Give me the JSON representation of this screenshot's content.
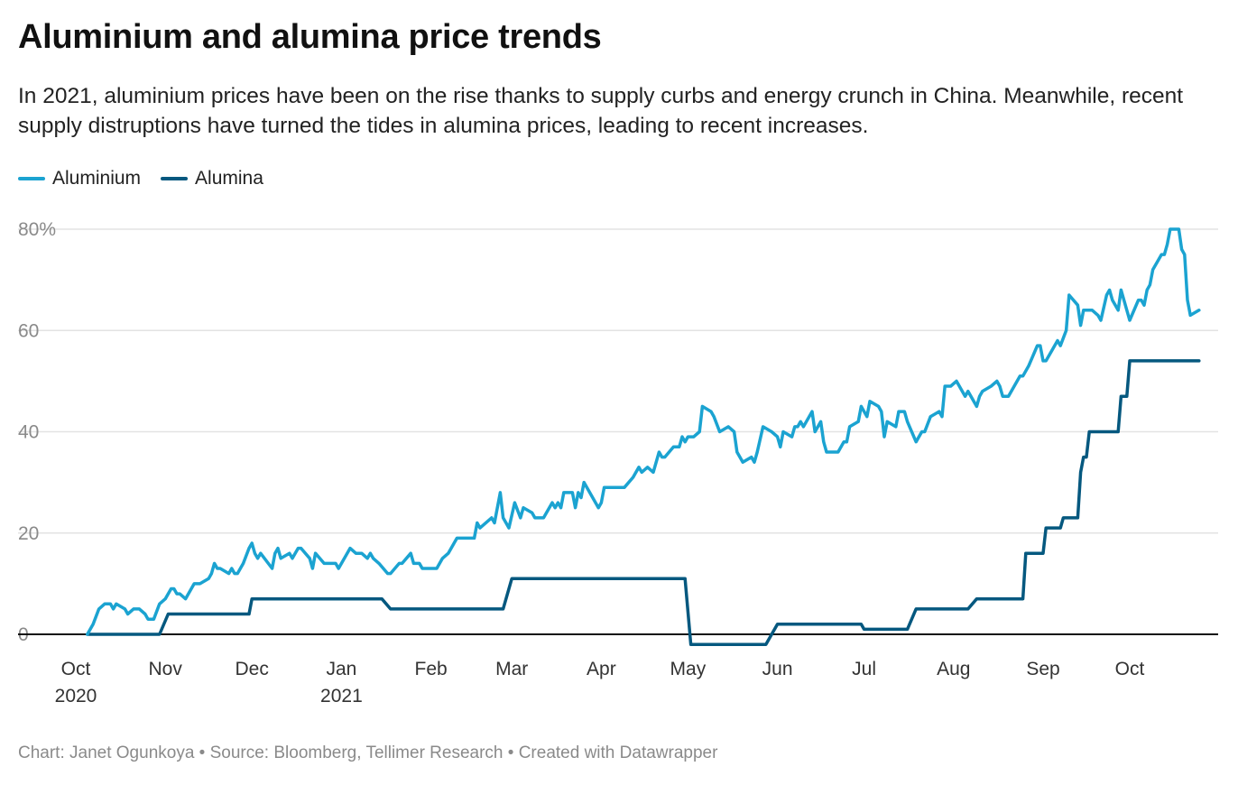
{
  "header": {
    "title": "Aluminium and alumina price trends",
    "subtitle": "In 2021, aluminium prices have been on the rise thanks to supply curbs and energy crunch in China. Meanwhile, recent supply distruptions have turned the tides in alumina prices, leading to recent increases."
  },
  "footer": "Chart: Janet Ogunkoya • Source: Bloomberg, Tellimer Research • Created with Datawrapper",
  "chart_data": {
    "type": "line",
    "title": "Aluminium and alumina price trends",
    "xlabel": "",
    "ylabel": "",
    "ylim": [
      -3,
      82
    ],
    "grid": true,
    "legend_position": "top-left",
    "y_ticks": [
      "0",
      "20",
      "40",
      "60",
      "80%"
    ],
    "y_tick_values": [
      0,
      20,
      40,
      60,
      80
    ],
    "x_ticks": [
      {
        "date": "2020-10-01",
        "label": "Oct",
        "year": "2020"
      },
      {
        "date": "2020-11-01",
        "label": "Nov"
      },
      {
        "date": "2020-12-01",
        "label": "Dec"
      },
      {
        "date": "2021-01-01",
        "label": "Jan",
        "year": "2021"
      },
      {
        "date": "2021-02-01",
        "label": "Feb"
      },
      {
        "date": "2021-03-01",
        "label": "Mar"
      },
      {
        "date": "2021-04-01",
        "label": "Apr"
      },
      {
        "date": "2021-05-01",
        "label": "May"
      },
      {
        "date": "2021-06-01",
        "label": "Jun"
      },
      {
        "date": "2021-07-01",
        "label": "Jul"
      },
      {
        "date": "2021-08-01",
        "label": "Aug"
      },
      {
        "date": "2021-09-01",
        "label": "Sep"
      },
      {
        "date": "2021-10-01",
        "label": "Oct"
      }
    ],
    "series": [
      {
        "name": "Aluminium",
        "color": "#1ba3d1",
        "points": [
          [
            "2020-10-05",
            0
          ],
          [
            "2020-10-07",
            2
          ],
          [
            "2020-10-09",
            5
          ],
          [
            "2020-10-11",
            6
          ],
          [
            "2020-10-13",
            6
          ],
          [
            "2020-10-14",
            5
          ],
          [
            "2020-10-15",
            6
          ],
          [
            "2020-10-18",
            5
          ],
          [
            "2020-10-19",
            4
          ],
          [
            "2020-10-21",
            5
          ],
          [
            "2020-10-23",
            5
          ],
          [
            "2020-10-25",
            4
          ],
          [
            "2020-10-26",
            3
          ],
          [
            "2020-10-28",
            3
          ],
          [
            "2020-10-30",
            6
          ],
          [
            "2020-11-01",
            7
          ],
          [
            "2020-11-03",
            9
          ],
          [
            "2020-11-04",
            9
          ],
          [
            "2020-11-05",
            8
          ],
          [
            "2020-11-06",
            8
          ],
          [
            "2020-11-08",
            7
          ],
          [
            "2020-11-11",
            10
          ],
          [
            "2020-11-13",
            10
          ],
          [
            "2020-11-16",
            11
          ],
          [
            "2020-11-17",
            12
          ],
          [
            "2020-11-18",
            14
          ],
          [
            "2020-11-19",
            13
          ],
          [
            "2020-11-20",
            13
          ],
          [
            "2020-11-23",
            12
          ],
          [
            "2020-11-24",
            13
          ],
          [
            "2020-11-25",
            12
          ],
          [
            "2020-11-26",
            12
          ],
          [
            "2020-11-28",
            14
          ],
          [
            "2020-11-30",
            17
          ],
          [
            "2020-12-01",
            18
          ],
          [
            "2020-12-02",
            16
          ],
          [
            "2020-12-03",
            15
          ],
          [
            "2020-12-04",
            16
          ],
          [
            "2020-12-08",
            13
          ],
          [
            "2020-12-09",
            16
          ],
          [
            "2020-12-10",
            17
          ],
          [
            "2020-12-11",
            15
          ],
          [
            "2020-12-14",
            16
          ],
          [
            "2020-12-15",
            15
          ],
          [
            "2020-12-17",
            17
          ],
          [
            "2020-12-18",
            17
          ],
          [
            "2020-12-21",
            15
          ],
          [
            "2020-12-22",
            13
          ],
          [
            "2020-12-23",
            16
          ],
          [
            "2020-12-26",
            14
          ],
          [
            "2020-12-30",
            14
          ],
          [
            "2020-12-31",
            13
          ],
          [
            "2021-01-04",
            17
          ],
          [
            "2021-01-06",
            16
          ],
          [
            "2021-01-08",
            16
          ],
          [
            "2021-01-10",
            15
          ],
          [
            "2021-01-11",
            16
          ],
          [
            "2021-01-12",
            15
          ],
          [
            "2021-01-14",
            14
          ],
          [
            "2021-01-17",
            12
          ],
          [
            "2021-01-18",
            12
          ],
          [
            "2021-01-21",
            14
          ],
          [
            "2021-01-22",
            14
          ],
          [
            "2021-01-25",
            16
          ],
          [
            "2021-01-26",
            14
          ],
          [
            "2021-01-28",
            14
          ],
          [
            "2021-01-29",
            13
          ],
          [
            "2021-02-03",
            13
          ],
          [
            "2021-02-05",
            15
          ],
          [
            "2021-02-07",
            16
          ],
          [
            "2021-02-09",
            18
          ],
          [
            "2021-02-10",
            19
          ],
          [
            "2021-02-16",
            19
          ],
          [
            "2021-02-17",
            22
          ],
          [
            "2021-02-18",
            21
          ],
          [
            "2021-02-22",
            23
          ],
          [
            "2021-02-23",
            22
          ],
          [
            "2021-02-25",
            28
          ],
          [
            "2021-02-26",
            23
          ],
          [
            "2021-02-28",
            21
          ],
          [
            "2021-03-02",
            26
          ],
          [
            "2021-03-04",
            23
          ],
          [
            "2021-03-05",
            25
          ],
          [
            "2021-03-08",
            24
          ],
          [
            "2021-03-09",
            23
          ],
          [
            "2021-03-12",
            23
          ],
          [
            "2021-03-15",
            26
          ],
          [
            "2021-03-16",
            25
          ],
          [
            "2021-03-17",
            26
          ],
          [
            "2021-03-18",
            25
          ],
          [
            "2021-03-19",
            28
          ],
          [
            "2021-03-22",
            28
          ],
          [
            "2021-03-23",
            25
          ],
          [
            "2021-03-24",
            28
          ],
          [
            "2021-03-25",
            27
          ],
          [
            "2021-03-26",
            30
          ],
          [
            "2021-03-28",
            28
          ],
          [
            "2021-03-30",
            26
          ],
          [
            "2021-03-31",
            25
          ],
          [
            "2021-04-01",
            26
          ],
          [
            "2021-04-02",
            29
          ],
          [
            "2021-04-05",
            29
          ],
          [
            "2021-04-07",
            29
          ],
          [
            "2021-04-09",
            29
          ],
          [
            "2021-04-12",
            31
          ],
          [
            "2021-04-14",
            33
          ],
          [
            "2021-04-15",
            32
          ],
          [
            "2021-04-17",
            33
          ],
          [
            "2021-04-19",
            32
          ],
          [
            "2021-04-21",
            36
          ],
          [
            "2021-04-22",
            35
          ],
          [
            "2021-04-23",
            35
          ],
          [
            "2021-04-26",
            37
          ],
          [
            "2021-04-28",
            37
          ],
          [
            "2021-04-29",
            39
          ],
          [
            "2021-04-30",
            38
          ],
          [
            "2021-05-01",
            39
          ],
          [
            "2021-05-03",
            39
          ],
          [
            "2021-05-05",
            40
          ],
          [
            "2021-05-06",
            45
          ],
          [
            "2021-05-09",
            44
          ],
          [
            "2021-05-10",
            43
          ],
          [
            "2021-05-12",
            40
          ],
          [
            "2021-05-15",
            41
          ],
          [
            "2021-05-17",
            40
          ],
          [
            "2021-05-18",
            36
          ],
          [
            "2021-05-20",
            34
          ],
          [
            "2021-05-23",
            35
          ],
          [
            "2021-05-24",
            34
          ],
          [
            "2021-05-25",
            36
          ],
          [
            "2021-05-27",
            41
          ],
          [
            "2021-05-30",
            40
          ],
          [
            "2021-06-01",
            39
          ],
          [
            "2021-06-02",
            37
          ],
          [
            "2021-06-03",
            40
          ],
          [
            "2021-06-06",
            39
          ],
          [
            "2021-06-07",
            41
          ],
          [
            "2021-06-08",
            41
          ],
          [
            "2021-06-09",
            42
          ],
          [
            "2021-06-10",
            41
          ],
          [
            "2021-06-13",
            44
          ],
          [
            "2021-06-14",
            40
          ],
          [
            "2021-06-16",
            42
          ],
          [
            "2021-06-17",
            38
          ],
          [
            "2021-06-18",
            36
          ],
          [
            "2021-06-22",
            36
          ],
          [
            "2021-06-24",
            38
          ],
          [
            "2021-06-25",
            38
          ],
          [
            "2021-06-26",
            41
          ],
          [
            "2021-06-29",
            42
          ],
          [
            "2021-06-30",
            45
          ],
          [
            "2021-07-02",
            43
          ],
          [
            "2021-07-03",
            46
          ],
          [
            "2021-07-06",
            45
          ],
          [
            "2021-07-07",
            44
          ],
          [
            "2021-07-08",
            39
          ],
          [
            "2021-07-09",
            42
          ],
          [
            "2021-07-12",
            41
          ],
          [
            "2021-07-13",
            44
          ],
          [
            "2021-07-15",
            44
          ],
          [
            "2021-07-16",
            42
          ],
          [
            "2021-07-19",
            38
          ],
          [
            "2021-07-21",
            40
          ],
          [
            "2021-07-22",
            40
          ],
          [
            "2021-07-24",
            43
          ],
          [
            "2021-07-27",
            44
          ],
          [
            "2021-07-28",
            43
          ],
          [
            "2021-07-29",
            49
          ],
          [
            "2021-07-31",
            49
          ],
          [
            "2021-08-02",
            50
          ],
          [
            "2021-08-04",
            48
          ],
          [
            "2021-08-05",
            47
          ],
          [
            "2021-08-06",
            48
          ],
          [
            "2021-08-09",
            45
          ],
          [
            "2021-08-10",
            47
          ],
          [
            "2021-08-11",
            48
          ],
          [
            "2021-08-14",
            49
          ],
          [
            "2021-08-16",
            50
          ],
          [
            "2021-08-17",
            49
          ],
          [
            "2021-08-18",
            47
          ],
          [
            "2021-08-20",
            47
          ],
          [
            "2021-08-24",
            51
          ],
          [
            "2021-08-25",
            51
          ],
          [
            "2021-08-27",
            53
          ],
          [
            "2021-08-30",
            57
          ],
          [
            "2021-08-31",
            57
          ],
          [
            "2021-09-01",
            54
          ],
          [
            "2021-09-02",
            54
          ],
          [
            "2021-09-04",
            56
          ],
          [
            "2021-09-06",
            58
          ],
          [
            "2021-09-07",
            57
          ],
          [
            "2021-09-09",
            60
          ],
          [
            "2021-09-10",
            67
          ],
          [
            "2021-09-13",
            65
          ],
          [
            "2021-09-14",
            61
          ],
          [
            "2021-09-15",
            64
          ],
          [
            "2021-09-18",
            64
          ],
          [
            "2021-09-20",
            63
          ],
          [
            "2021-09-21",
            62
          ],
          [
            "2021-09-23",
            67
          ],
          [
            "2021-09-24",
            68
          ],
          [
            "2021-09-25",
            66
          ],
          [
            "2021-09-27",
            64
          ],
          [
            "2021-09-28",
            68
          ],
          [
            "2021-09-30",
            64
          ],
          [
            "2021-10-01",
            62
          ],
          [
            "2021-10-04",
            66
          ],
          [
            "2021-10-05",
            66
          ],
          [
            "2021-10-06",
            65
          ],
          [
            "2021-10-07",
            68
          ],
          [
            "2021-10-08",
            69
          ],
          [
            "2021-10-09",
            72
          ],
          [
            "2021-10-11",
            74
          ],
          [
            "2021-10-12",
            75
          ],
          [
            "2021-10-13",
            75
          ],
          [
            "2021-10-14",
            77
          ],
          [
            "2021-10-15",
            80
          ],
          [
            "2021-10-18",
            80
          ],
          [
            "2021-10-19",
            76
          ],
          [
            "2021-10-20",
            75
          ],
          [
            "2021-10-21",
            66
          ],
          [
            "2021-10-22",
            63
          ],
          [
            "2021-10-25",
            64
          ]
        ]
      },
      {
        "name": "Alumina",
        "color": "#05587f",
        "points": [
          [
            "2020-10-05",
            0
          ],
          [
            "2020-10-30",
            0
          ],
          [
            "2020-11-02",
            4
          ],
          [
            "2020-11-30",
            4
          ],
          [
            "2020-12-01",
            7
          ],
          [
            "2021-01-15",
            7
          ],
          [
            "2021-01-18",
            5
          ],
          [
            "2021-02-26",
            5
          ],
          [
            "2021-03-01",
            11
          ],
          [
            "2021-04-30",
            11
          ],
          [
            "2021-05-02",
            -2
          ],
          [
            "2021-05-28",
            -2
          ],
          [
            "2021-06-01",
            2
          ],
          [
            "2021-06-30",
            2
          ],
          [
            "2021-07-01",
            1
          ],
          [
            "2021-07-16",
            1
          ],
          [
            "2021-07-19",
            5
          ],
          [
            "2021-08-06",
            5
          ],
          [
            "2021-08-09",
            7
          ],
          [
            "2021-08-25",
            7
          ],
          [
            "2021-08-26",
            16
          ],
          [
            "2021-09-01",
            16
          ],
          [
            "2021-09-02",
            21
          ],
          [
            "2021-09-07",
            21
          ],
          [
            "2021-09-08",
            23
          ],
          [
            "2021-09-13",
            23
          ],
          [
            "2021-09-14",
            32
          ],
          [
            "2021-09-15",
            35
          ],
          [
            "2021-09-16",
            35
          ],
          [
            "2021-09-17",
            40
          ],
          [
            "2021-09-27",
            40
          ],
          [
            "2021-09-28",
            47
          ],
          [
            "2021-09-30",
            47
          ],
          [
            "2021-10-01",
            54
          ],
          [
            "2021-10-25",
            54
          ]
        ]
      }
    ]
  }
}
